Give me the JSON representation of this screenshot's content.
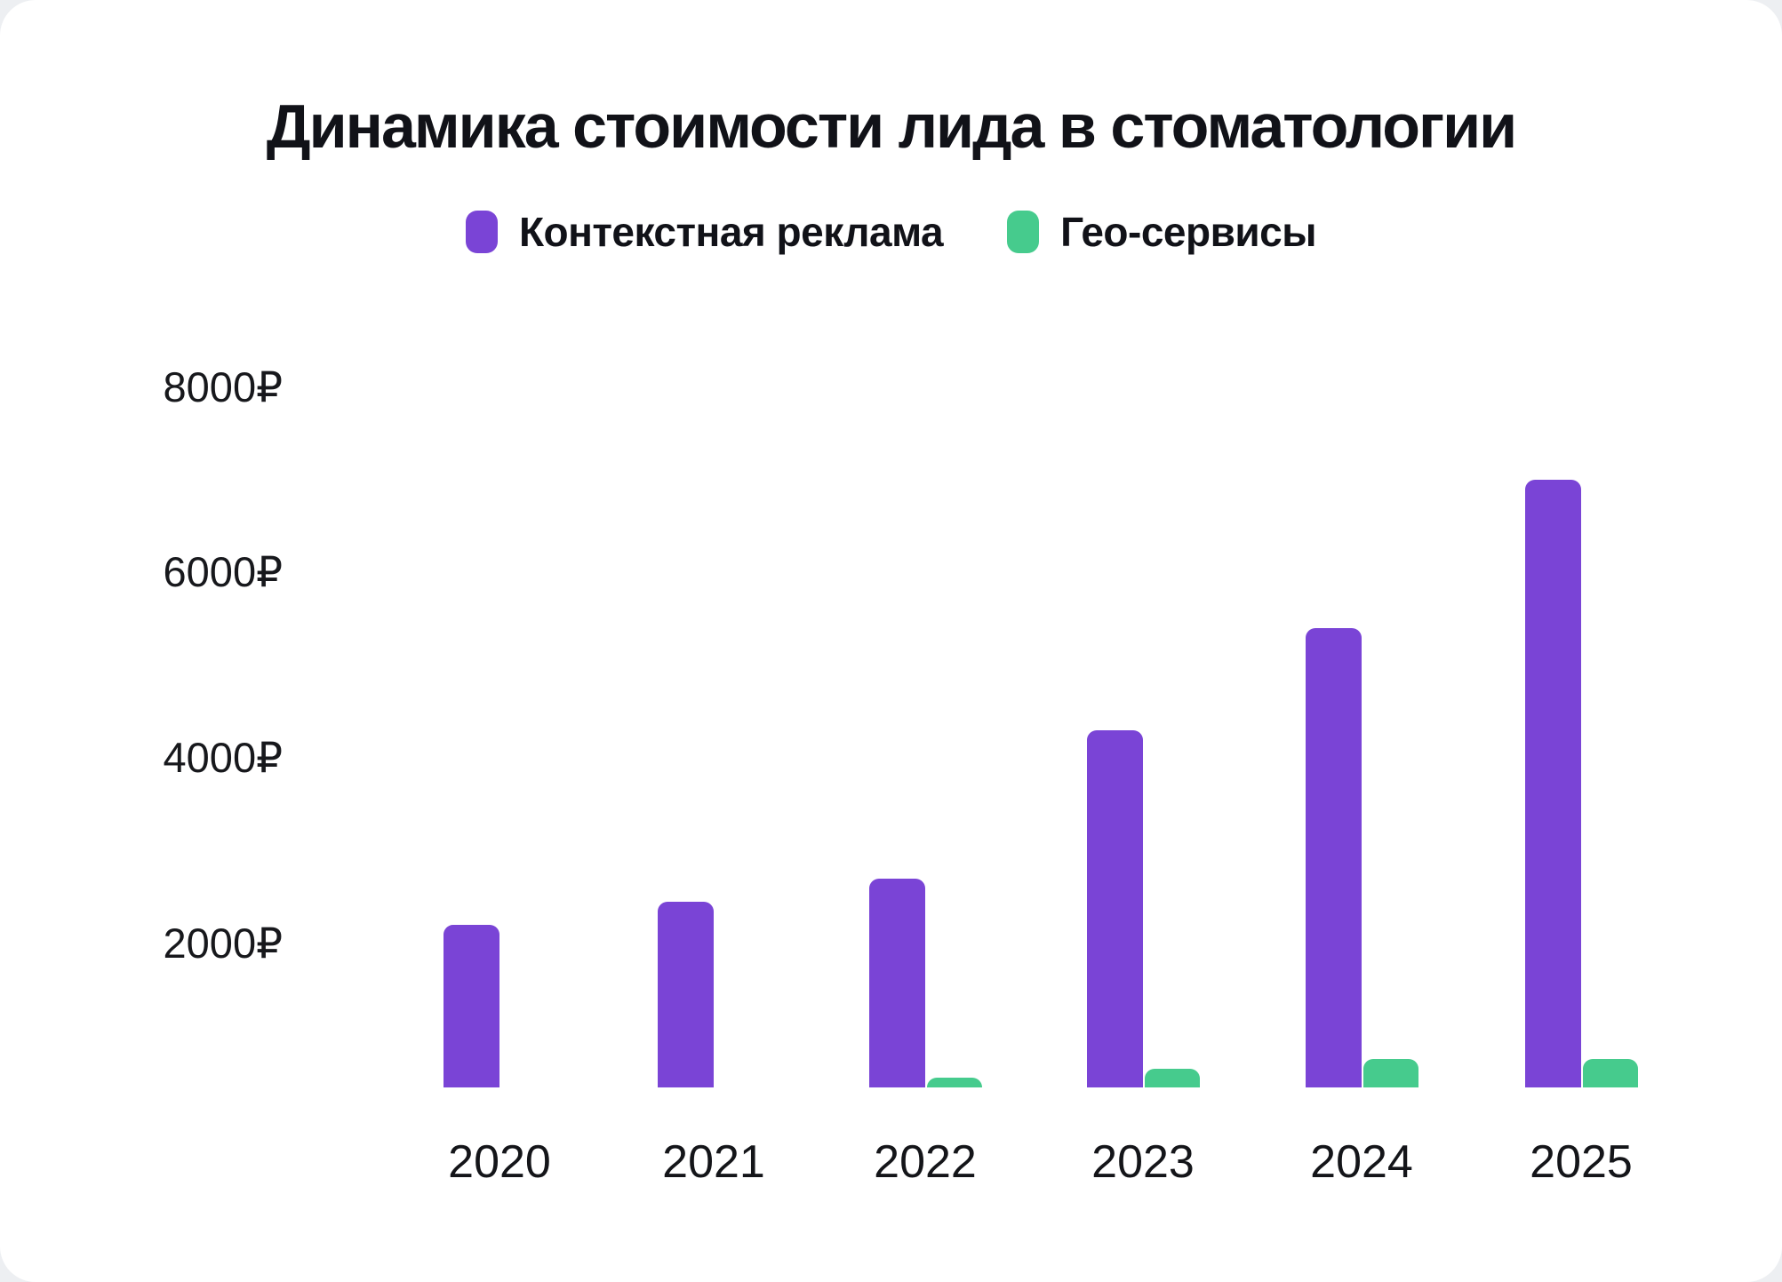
{
  "chart_data": {
    "type": "bar",
    "title": "Динамика стоимости лида в стоматологии",
    "categories": [
      "2020",
      "2021",
      "2022",
      "2023",
      "2024",
      "2025"
    ],
    "series": [
      {
        "name": "Контекстная реклама",
        "color": "#7a44d6",
        "values": [
          2200,
          2450,
          2700,
          4300,
          5400,
          7000
        ]
      },
      {
        "name": "Гео-сервисы",
        "color": "#46cb8d",
        "values": [
          null,
          null,
          550,
          650,
          750,
          750
        ]
      }
    ],
    "y_ticks": [
      8000,
      6000,
      4000,
      2000
    ],
    "currency_suffix": "₽",
    "xlabel": "",
    "ylabel": "",
    "ylim": [
      0,
      8800
    ],
    "grid": false,
    "legend_position": "top"
  }
}
